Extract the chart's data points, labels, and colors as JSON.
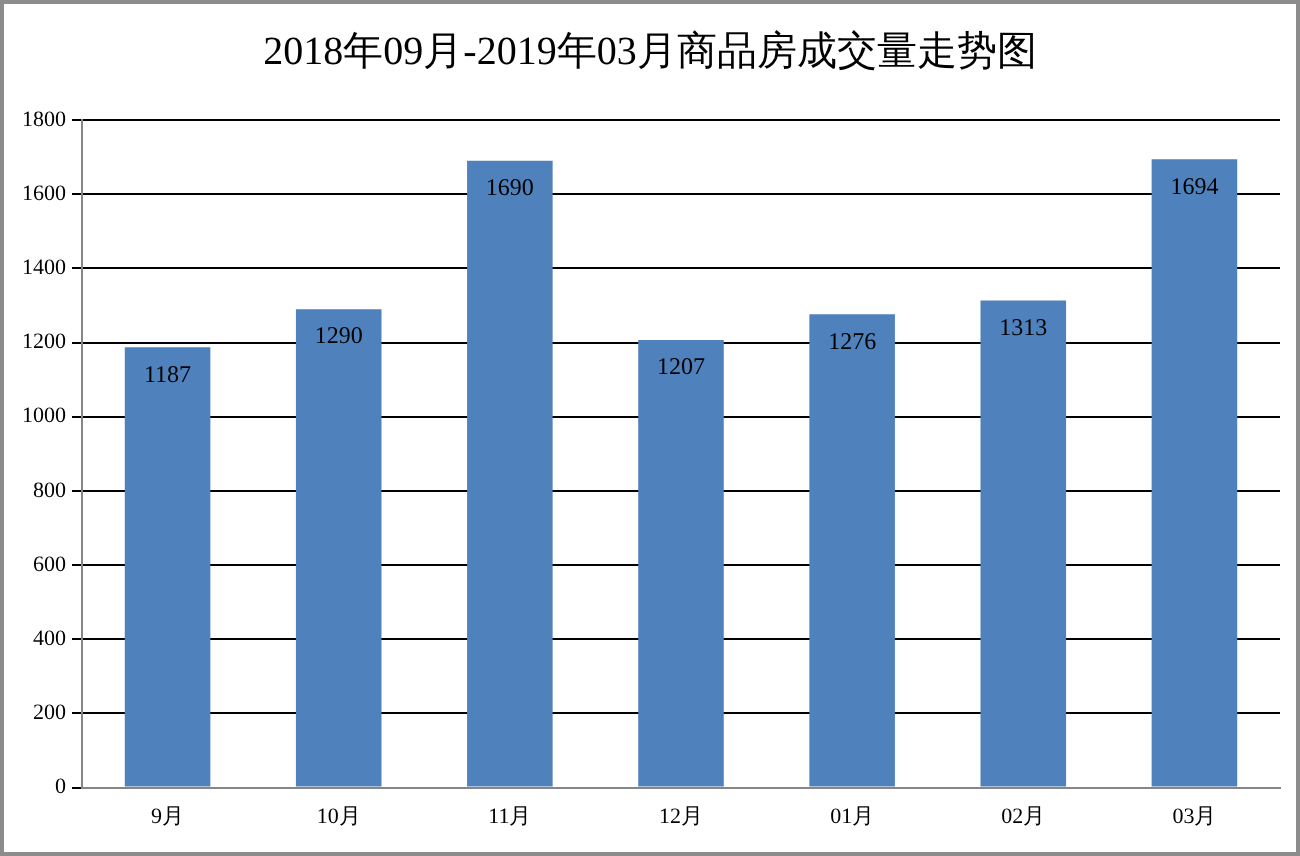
{
  "chart_data": {
    "type": "bar",
    "title": "2018年09月-2019年03月商品房成交量走势图",
    "categories": [
      "9月",
      "10月",
      "11月",
      "12月",
      "01月",
      "02月",
      "03月"
    ],
    "values": [
      1187,
      1290,
      1690,
      1207,
      1276,
      1313,
      1694
    ],
    "color": "#4f81bd",
    "ylim": [
      0,
      1800
    ],
    "yticks": [
      0,
      200,
      400,
      600,
      800,
      1000,
      1200,
      1400,
      1600,
      1800
    ],
    "grid": "y",
    "data_labels": true,
    "legend": false
  }
}
